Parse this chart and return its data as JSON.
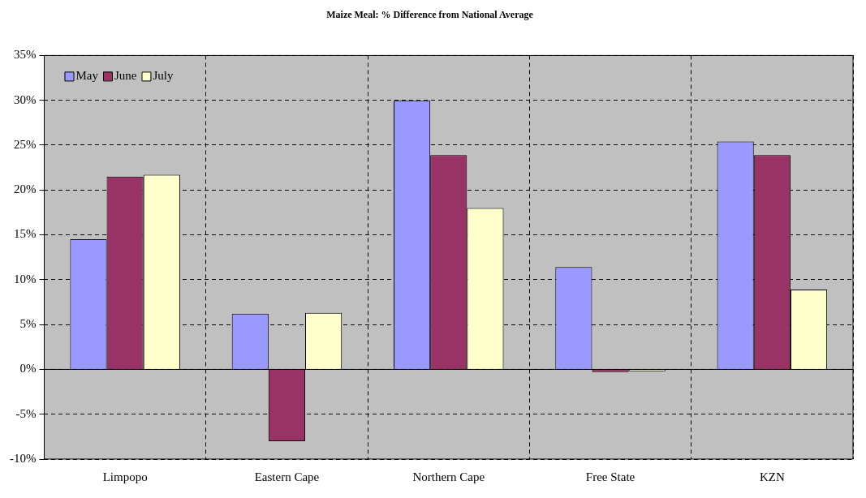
{
  "chart_data": {
    "type": "bar",
    "title": "Maize Meal: % Difference from National Average",
    "categories": [
      "Limpopo",
      "Eastern Cape",
      "Northern Cape",
      "Free State",
      "KZN"
    ],
    "series": [
      {
        "name": "May",
        "color": "#9999ff",
        "values": [
          14.5,
          6.2,
          30.0,
          11.4,
          25.4
        ]
      },
      {
        "name": "June",
        "color": "#993366",
        "values": [
          21.5,
          -8.0,
          23.9,
          -0.3,
          23.9
        ]
      },
      {
        "name": "July",
        "color": "#ffffcc",
        "values": [
          21.7,
          6.3,
          18.0,
          -0.2,
          8.9
        ]
      }
    ],
    "ylim": [
      -10,
      35
    ],
    "yticks": [
      {
        "value": -10,
        "label": "-10%"
      },
      {
        "value": -5,
        "label": "-5%"
      },
      {
        "value": 0,
        "label": "0%"
      },
      {
        "value": 5,
        "label": "5%"
      },
      {
        "value": 10,
        "label": "10%"
      },
      {
        "value": 15,
        "label": "15%"
      },
      {
        "value": 20,
        "label": "20%"
      },
      {
        "value": 25,
        "label": "25%"
      },
      {
        "value": 30,
        "label": "30%"
      },
      {
        "value": 35,
        "label": "35%"
      }
    ],
    "grid": true,
    "legend": "top left"
  }
}
